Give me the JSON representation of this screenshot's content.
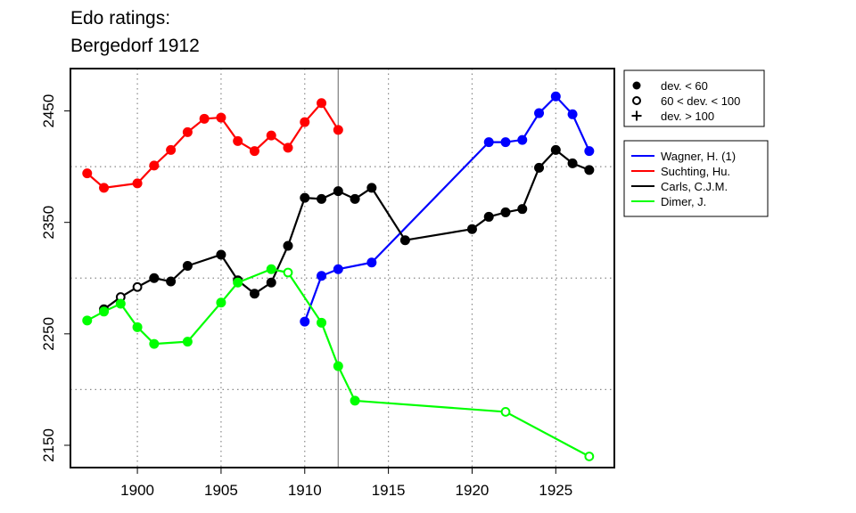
{
  "chart_data": {
    "type": "line",
    "title": "Edo ratings:",
    "subtitle": "Bergedorf 1912",
    "xlabel": "",
    "ylabel": "",
    "xlim": [
      1896,
      1928.5
    ],
    "ylim": [
      2130,
      2488
    ],
    "x_ticks": [
      1900,
      1905,
      1910,
      1915,
      1920,
      1925
    ],
    "y_ticks": [
      2150,
      2250,
      2350,
      2450
    ],
    "grid_x": [
      1900,
      1905,
      1910,
      1915,
      1920,
      1925
    ],
    "grid_y": [
      2200,
      2300,
      2400
    ],
    "grid": true,
    "reference_year": 1912,
    "marker_legend": {
      "position": "top-right",
      "entries": [
        {
          "label": "dev. < 60",
          "marker": "filled-circle"
        },
        {
          "label": "60 < dev. < 100",
          "marker": "open-circle"
        },
        {
          "label": "dev. > 100",
          "marker": "plus"
        }
      ]
    },
    "series_legend_position": "right",
    "series": [
      {
        "name": "Wagner, H. (1)",
        "color": "#0000ff",
        "points": [
          {
            "x": 1910,
            "y": 2261,
            "m": "filled"
          },
          {
            "x": 1911,
            "y": 2302,
            "m": "filled"
          },
          {
            "x": 1912,
            "y": 2308,
            "m": "filled"
          },
          {
            "x": 1914,
            "y": 2314,
            "m": "filled"
          },
          {
            "x": 1921,
            "y": 2422,
            "m": "filled"
          },
          {
            "x": 1922,
            "y": 2422,
            "m": "filled"
          },
          {
            "x": 1923,
            "y": 2424,
            "m": "filled"
          },
          {
            "x": 1924,
            "y": 2448,
            "m": "filled"
          },
          {
            "x": 1925,
            "y": 2463,
            "m": "filled"
          },
          {
            "x": 1926,
            "y": 2447,
            "m": "filled"
          },
          {
            "x": 1927,
            "y": 2414,
            "m": "filled"
          }
        ]
      },
      {
        "name": "Suchting, Hu.",
        "color": "#ff0000",
        "points": [
          {
            "x": 1897,
            "y": 2394,
            "m": "filled"
          },
          {
            "x": 1898,
            "y": 2381,
            "m": "filled"
          },
          {
            "x": 1900,
            "y": 2385,
            "m": "filled"
          },
          {
            "x": 1901,
            "y": 2401,
            "m": "filled"
          },
          {
            "x": 1902,
            "y": 2415,
            "m": "filled"
          },
          {
            "x": 1903,
            "y": 2431,
            "m": "filled"
          },
          {
            "x": 1904,
            "y": 2443,
            "m": "filled"
          },
          {
            "x": 1905,
            "y": 2444,
            "m": "filled"
          },
          {
            "x": 1906,
            "y": 2423,
            "m": "filled"
          },
          {
            "x": 1907,
            "y": 2414,
            "m": "filled"
          },
          {
            "x": 1908,
            "y": 2428,
            "m": "filled"
          },
          {
            "x": 1909,
            "y": 2417,
            "m": "filled"
          },
          {
            "x": 1910,
            "y": 2440,
            "m": "filled"
          },
          {
            "x": 1911,
            "y": 2457,
            "m": "filled"
          },
          {
            "x": 1912,
            "y": 2433,
            "m": "filled"
          }
        ]
      },
      {
        "name": "Carls, C.J.M.",
        "color": "#000000",
        "points": [
          {
            "x": 1898,
            "y": 2272,
            "m": "filled"
          },
          {
            "x": 1899,
            "y": 2283,
            "m": "open"
          },
          {
            "x": 1900,
            "y": 2292,
            "m": "open"
          },
          {
            "x": 1901,
            "y": 2300,
            "m": "filled"
          },
          {
            "x": 1902,
            "y": 2297,
            "m": "filled"
          },
          {
            "x": 1903,
            "y": 2311,
            "m": "filled"
          },
          {
            "x": 1905,
            "y": 2321,
            "m": "filled"
          },
          {
            "x": 1906,
            "y": 2298,
            "m": "filled"
          },
          {
            "x": 1907,
            "y": 2286,
            "m": "filled"
          },
          {
            "x": 1908,
            "y": 2296,
            "m": "filled"
          },
          {
            "x": 1909,
            "y": 2329,
            "m": "filled"
          },
          {
            "x": 1910,
            "y": 2372,
            "m": "filled"
          },
          {
            "x": 1911,
            "y": 2371,
            "m": "filled"
          },
          {
            "x": 1912,
            "y": 2378,
            "m": "filled"
          },
          {
            "x": 1913,
            "y": 2371,
            "m": "filled"
          },
          {
            "x": 1914,
            "y": 2381,
            "m": "filled"
          },
          {
            "x": 1916,
            "y": 2334,
            "m": "filled"
          },
          {
            "x": 1920,
            "y": 2344,
            "m": "filled"
          },
          {
            "x": 1921,
            "y": 2355,
            "m": "filled"
          },
          {
            "x": 1922,
            "y": 2359,
            "m": "filled"
          },
          {
            "x": 1923,
            "y": 2362,
            "m": "filled"
          },
          {
            "x": 1924,
            "y": 2399,
            "m": "filled"
          },
          {
            "x": 1925,
            "y": 2415,
            "m": "filled"
          },
          {
            "x": 1926,
            "y": 2403,
            "m": "filled"
          },
          {
            "x": 1927,
            "y": 2397,
            "m": "filled"
          }
        ]
      },
      {
        "name": "Dimer, J.",
        "color": "#00ff00",
        "points": [
          {
            "x": 1897,
            "y": 2262,
            "m": "filled"
          },
          {
            "x": 1898,
            "y": 2270,
            "m": "filled"
          },
          {
            "x": 1899,
            "y": 2277,
            "m": "filled"
          },
          {
            "x": 1900,
            "y": 2256,
            "m": "filled"
          },
          {
            "x": 1901,
            "y": 2241,
            "m": "filled"
          },
          {
            "x": 1903,
            "y": 2243,
            "m": "filled"
          },
          {
            "x": 1905,
            "y": 2278,
            "m": "filled"
          },
          {
            "x": 1906,
            "y": 2296,
            "m": "filled"
          },
          {
            "x": 1908,
            "y": 2308,
            "m": "filled"
          },
          {
            "x": 1909,
            "y": 2305,
            "m": "open"
          },
          {
            "x": 1911,
            "y": 2260,
            "m": "filled"
          },
          {
            "x": 1912,
            "y": 2221,
            "m": "filled"
          },
          {
            "x": 1913,
            "y": 2190,
            "m": "filled"
          },
          {
            "x": 1922,
            "y": 2180,
            "m": "open"
          },
          {
            "x": 1927,
            "y": 2140,
            "m": "open"
          }
        ]
      }
    ]
  }
}
